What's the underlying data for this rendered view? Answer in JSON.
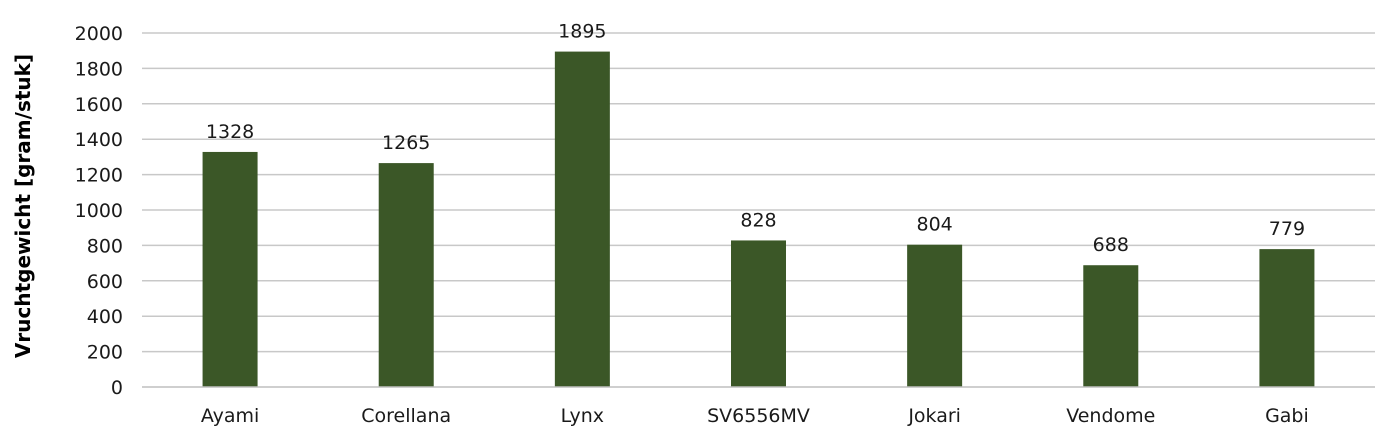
{
  "chart_data": {
    "type": "bar",
    "title": "",
    "xlabel": "",
    "ylabel": "Vruchtgewicht [gram/stuk]",
    "categories": [
      "Ayami",
      "Corellana",
      "Lynx",
      "SV6556MV",
      "Jokari",
      "Vendome",
      "Gabi"
    ],
    "values": [
      1328,
      1265,
      1895,
      828,
      804,
      688,
      779
    ],
    "ylim": [
      0,
      2000
    ],
    "yticks": [
      0,
      200,
      400,
      600,
      800,
      1000,
      1200,
      1400,
      1600,
      1800,
      2000
    ],
    "grid": true,
    "legend": "none",
    "bar_color": "#3b5727",
    "grid_color": "#c8c8c8",
    "data_labels": true
  }
}
